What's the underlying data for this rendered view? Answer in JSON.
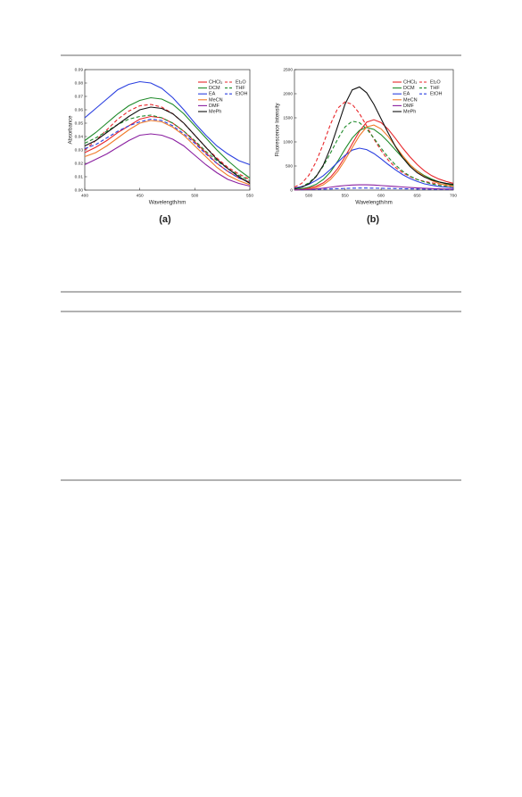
{
  "chart_data": [
    {
      "type": "line",
      "xlabel": "Wavelength/nm",
      "ylabel": "Absorbance",
      "xlim": [
        400,
        550
      ],
      "xticks": [
        400,
        450,
        500,
        550
      ],
      "ylim": [
        0,
        0.09
      ],
      "yticks": [
        {
          "value": 0,
          "label": "0.00"
        },
        0.01,
        0.02,
        0.03,
        0.04,
        0.05,
        0.06,
        0.07,
        0.08,
        0.09
      ],
      "x": [
        400,
        410,
        420,
        430,
        440,
        450,
        460,
        470,
        480,
        490,
        500,
        510,
        520,
        530,
        540,
        550
      ],
      "series": [
        {
          "name": "CHCl₃",
          "color": "#e8262a",
          "dash": false,
          "values": [
            0.028,
            0.032,
            0.037,
            0.043,
            0.048,
            0.053,
            0.055,
            0.054,
            0.05,
            0.044,
            0.036,
            0.028,
            0.02,
            0.014,
            0.009,
            0.006
          ]
        },
        {
          "name": "Et₂O",
          "color": "#e8262a",
          "dash": true,
          "values": [
            0.03,
            0.037,
            0.045,
            0.053,
            0.059,
            0.063,
            0.064,
            0.062,
            0.057,
            0.05,
            0.041,
            0.032,
            0.024,
            0.017,
            0.012,
            0.008
          ]
        },
        {
          "name": "DCM",
          "color": "#1f8a2a",
          "dash": false,
          "values": [
            0.037,
            0.043,
            0.05,
            0.057,
            0.063,
            0.067,
            0.069,
            0.068,
            0.064,
            0.057,
            0.048,
            0.039,
            0.03,
            0.022,
            0.015,
            0.009
          ]
        },
        {
          "name": "THF",
          "color": "#1f8a2a",
          "dash": true,
          "values": [
            0.035,
            0.039,
            0.044,
            0.049,
            0.053,
            0.055,
            0.056,
            0.054,
            0.05,
            0.044,
            0.037,
            0.029,
            0.022,
            0.016,
            0.011,
            0.007
          ]
        },
        {
          "name": "EA",
          "color": "#2a3fe0",
          "dash": false,
          "values": [
            0.054,
            0.061,
            0.068,
            0.075,
            0.079,
            0.081,
            0.08,
            0.076,
            0.069,
            0.06,
            0.05,
            0.041,
            0.033,
            0.027,
            0.022,
            0.019
          ]
        },
        {
          "name": "EtOH",
          "color": "#2a3fe0",
          "dash": true,
          "values": [
            0.031,
            0.034,
            0.039,
            0.044,
            0.048,
            0.051,
            0.053,
            0.052,
            0.048,
            0.042,
            0.035,
            0.027,
            0.02,
            0.014,
            0.009,
            0.006
          ]
        },
        {
          "name": "MeCN",
          "color": "#f07a2a",
          "dash": false,
          "values": [
            0.025,
            0.028,
            0.033,
            0.039,
            0.045,
            0.05,
            0.052,
            0.051,
            0.047,
            0.041,
            0.033,
            0.025,
            0.017,
            0.011,
            0.007,
            0.004
          ]
        },
        {
          "name": "DMF",
          "color": "#8a1fa0",
          "dash": false,
          "values": [
            0.019,
            0.023,
            0.027,
            0.032,
            0.037,
            0.041,
            0.042,
            0.041,
            0.038,
            0.033,
            0.026,
            0.019,
            0.013,
            0.008,
            0.005,
            0.003
          ]
        },
        {
          "name": "MePh",
          "color": "#111111",
          "dash": false,
          "values": [
            0.033,
            0.037,
            0.043,
            0.049,
            0.055,
            0.06,
            0.062,
            0.061,
            0.057,
            0.05,
            0.041,
            0.032,
            0.023,
            0.016,
            0.01,
            0.005
          ]
        }
      ]
    },
    {
      "type": "line",
      "xlabel": "Wavelength/nm",
      "ylabel": "Fluorescence Intensity",
      "xlim": [
        480,
        700
      ],
      "xticks": [
        500,
        550,
        600,
        650,
        700
      ],
      "ylim": [
        0,
        2500
      ],
      "yticks": [
        0,
        500,
        1000,
        1500,
        2000,
        2500
      ],
      "x": [
        480,
        490,
        500,
        510,
        520,
        530,
        540,
        550,
        560,
        570,
        580,
        590,
        600,
        610,
        620,
        630,
        640,
        650,
        660,
        670,
        680,
        690,
        700
      ],
      "series": [
        {
          "name": "CHCl₃",
          "color": "#e8262a",
          "dash": false,
          "values": [
            10,
            20,
            40,
            80,
            150,
            270,
            450,
            690,
            960,
            1220,
            1410,
            1460,
            1400,
            1260,
            1070,
            870,
            690,
            530,
            400,
            300,
            230,
            180,
            140
          ]
        },
        {
          "name": "Et₂O",
          "color": "#e8262a",
          "dash": true,
          "values": [
            60,
            140,
            310,
            590,
            960,
            1370,
            1700,
            1830,
            1780,
            1590,
            1330,
            1060,
            820,
            620,
            470,
            360,
            280,
            220,
            180,
            150,
            130,
            110,
            100
          ]
        },
        {
          "name": "DCM",
          "color": "#1f8a2a",
          "dash": false,
          "values": [
            15,
            30,
            60,
            120,
            220,
            380,
            600,
            850,
            1080,
            1240,
            1300,
            1260,
            1150,
            1000,
            830,
            670,
            520,
            400,
            300,
            230,
            170,
            130,
            100
          ]
        },
        {
          "name": "THF",
          "color": "#1f8a2a",
          "dash": true,
          "values": [
            30,
            70,
            150,
            290,
            500,
            770,
            1060,
            1310,
            1430,
            1400,
            1270,
            1080,
            870,
            680,
            520,
            390,
            290,
            220,
            170,
            130,
            100,
            80,
            70
          ]
        },
        {
          "name": "EA",
          "color": "#2a3fe0",
          "dash": false,
          "values": [
            40,
            70,
            120,
            200,
            300,
            430,
            580,
            720,
            830,
            870,
            840,
            760,
            650,
            530,
            420,
            320,
            240,
            180,
            130,
            100,
            75,
            60,
            50
          ]
        },
        {
          "name": "EtOH",
          "color": "#2a3fe0",
          "dash": true,
          "values": [
            5,
            8,
            10,
            15,
            20,
            25,
            30,
            35,
            40,
            42,
            42,
            40,
            38,
            35,
            32,
            28,
            25,
            22,
            20,
            18,
            15,
            13,
            12
          ]
        },
        {
          "name": "MeCN",
          "color": "#f07a2a",
          "dash": false,
          "values": [
            5,
            10,
            20,
            50,
            110,
            220,
            390,
            620,
            880,
            1130,
            1310,
            1350,
            1270,
            1110,
            910,
            710,
            530,
            390,
            280,
            200,
            140,
            100,
            70
          ]
        },
        {
          "name": "DMF",
          "color": "#8a1fa0",
          "dash": false,
          "values": [
            5,
            10,
            15,
            25,
            40,
            60,
            80,
            95,
            105,
            110,
            110,
            105,
            95,
            85,
            75,
            65,
            55,
            45,
            38,
            32,
            27,
            23,
            20
          ]
        },
        {
          "name": "MePh",
          "color": "#111111",
          "dash": false,
          "values": [
            30,
            60,
            130,
            280,
            520,
            880,
            1330,
            1780,
            2080,
            2140,
            2020,
            1780,
            1480,
            1180,
            900,
            670,
            490,
            360,
            270,
            210,
            170,
            140,
            120
          ]
        }
      ]
    }
  ],
  "panel_labels": [
    "(a)",
    "(b)"
  ]
}
